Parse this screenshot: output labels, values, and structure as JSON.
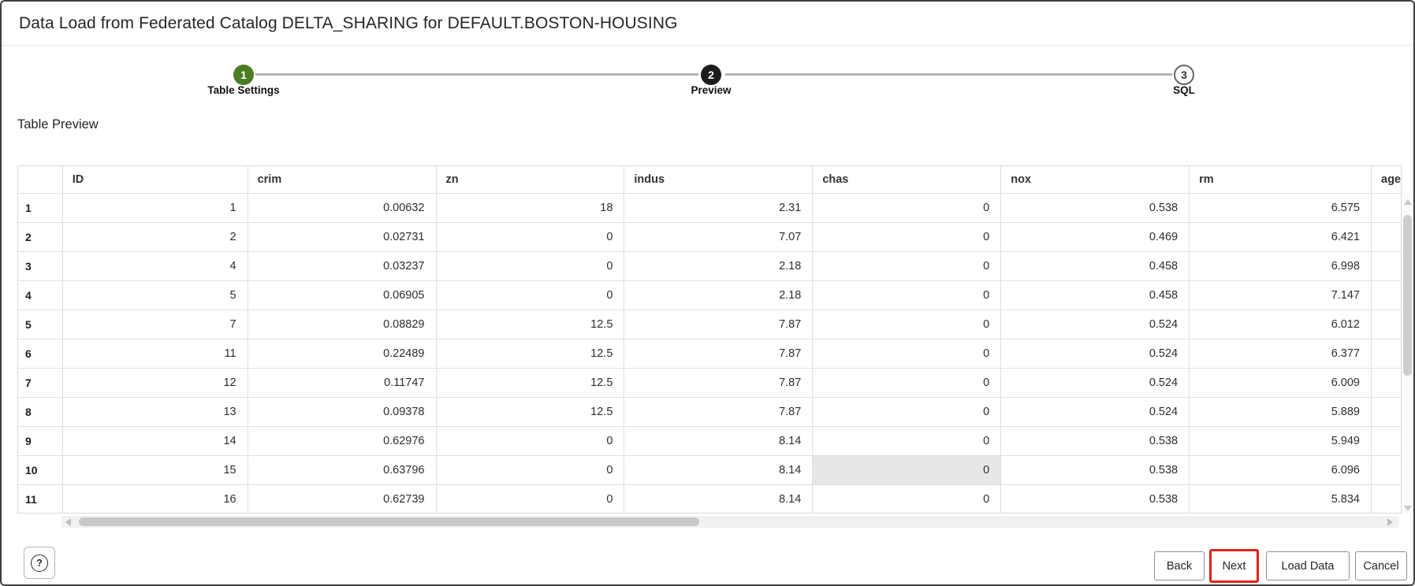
{
  "dialog": {
    "title": "Data Load from Federated Catalog DELTA_SHARING for DEFAULT.BOSTON-HOUSING"
  },
  "stepper": {
    "steps": [
      {
        "number": "1",
        "label": "Table Settings",
        "state": "completed"
      },
      {
        "number": "2",
        "label": "Preview",
        "state": "active"
      },
      {
        "number": "3",
        "label": "SQL",
        "state": "upcoming"
      }
    ]
  },
  "preview": {
    "section_title": "Table Preview",
    "table": {
      "columns": [
        "",
        "ID",
        "crim",
        "zn",
        "indus",
        "chas",
        "nox",
        "rm",
        "age"
      ],
      "rows": [
        {
          "num": "1",
          "cells": [
            "1",
            "0.00632",
            "18",
            "2.31",
            "0",
            "0.538",
            "6.575",
            ""
          ]
        },
        {
          "num": "2",
          "cells": [
            "2",
            "0.02731",
            "0",
            "7.07",
            "0",
            "0.469",
            "6.421",
            ""
          ]
        },
        {
          "num": "3",
          "cells": [
            "4",
            "0.03237",
            "0",
            "2.18",
            "0",
            "0.458",
            "6.998",
            ""
          ]
        },
        {
          "num": "4",
          "cells": [
            "5",
            "0.06905",
            "0",
            "2.18",
            "0",
            "0.458",
            "7.147",
            ""
          ]
        },
        {
          "num": "5",
          "cells": [
            "7",
            "0.08829",
            "12.5",
            "7.87",
            "0",
            "0.524",
            "6.012",
            ""
          ]
        },
        {
          "num": "6",
          "cells": [
            "11",
            "0.22489",
            "12.5",
            "7.87",
            "0",
            "0.524",
            "6.377",
            ""
          ]
        },
        {
          "num": "7",
          "cells": [
            "12",
            "0.11747",
            "12.5",
            "7.87",
            "0",
            "0.524",
            "6.009",
            ""
          ]
        },
        {
          "num": "8",
          "cells": [
            "13",
            "0.09378",
            "12.5",
            "7.87",
            "0",
            "0.524",
            "5.889",
            ""
          ]
        },
        {
          "num": "9",
          "cells": [
            "14",
            "0.62976",
            "0",
            "8.14",
            "0",
            "0.538",
            "5.949",
            ""
          ]
        },
        {
          "num": "10",
          "cells": [
            "15",
            "0.63796",
            "0",
            "8.14",
            "0",
            "0.538",
            "6.096",
            ""
          ]
        },
        {
          "num": "11",
          "cells": [
            "16",
            "0.62739",
            "0",
            "8.14",
            "0",
            "0.538",
            "5.834",
            ""
          ]
        }
      ],
      "highlighted_cell": {
        "row_num": "10",
        "column": "chas"
      }
    }
  },
  "footer": {
    "help_icon": "?",
    "buttons": [
      {
        "label": "Back"
      },
      {
        "label": "Next",
        "highlighted": true
      },
      {
        "label": "Load Data"
      },
      {
        "label": "Cancel"
      }
    ]
  },
  "colors": {
    "step_completed": "#4a7c23",
    "step_active": "#1d1d1d",
    "next_button_outline": "#e0241a",
    "highlighted_cell_bg": "#e7e7e7"
  }
}
